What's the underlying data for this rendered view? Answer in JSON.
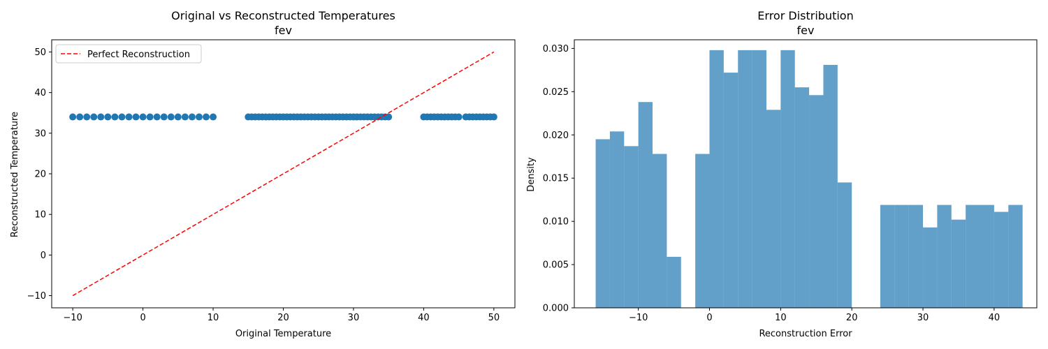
{
  "chart_data": [
    {
      "type": "scatter",
      "title": "Original vs Reconstructed Temperatures",
      "subtitle": "fev",
      "xlabel": "Original Temperature",
      "ylabel": "Reconstructed Temperature",
      "xlim": [
        -13,
        53
      ],
      "ylim": [
        -13,
        53
      ],
      "xticks": [
        -10,
        0,
        10,
        20,
        30,
        40,
        50
      ],
      "yticks": [
        -10,
        0,
        10,
        20,
        30,
        40,
        50
      ],
      "grid": false,
      "legend_position": "top-left",
      "legend": [
        "Perfect Reconstruction"
      ],
      "point_color": "#1f77b4",
      "line_color": "#ff0000",
      "series": [
        {
          "name": "",
          "kind": "points",
          "y_constant": 34,
          "x": [
            -10,
            -9,
            -8,
            -7,
            -6,
            -5,
            -4,
            -3,
            -2,
            -1,
            0,
            1,
            2,
            3,
            4,
            5,
            6,
            7,
            8,
            9,
            10,
            15,
            15.5,
            16,
            16.5,
            17,
            17.5,
            18,
            18.5,
            19,
            19.5,
            20,
            20.5,
            21,
            21.5,
            22,
            22.5,
            23,
            23.5,
            24,
            24.5,
            25,
            25.5,
            26,
            26.5,
            27,
            27.5,
            28,
            28.5,
            29,
            29.5,
            30,
            30.5,
            31,
            31.5,
            32,
            32.5,
            33,
            33.5,
            34,
            34.5,
            35,
            40,
            40.5,
            41,
            41.5,
            42,
            42.5,
            43,
            43.5,
            44,
            44.5,
            45,
            46,
            46.5,
            47,
            47.5,
            48,
            48.5,
            49,
            49.5,
            50
          ]
        },
        {
          "name": "Perfect Reconstruction",
          "kind": "dashed-line",
          "x": [
            -10,
            50
          ],
          "y": [
            -10,
            50
          ]
        }
      ]
    },
    {
      "type": "bar",
      "title": "Error Distribution",
      "subtitle": "fev",
      "xlabel": "Reconstruction Error",
      "ylabel": "Density",
      "xlim": [
        -19,
        46
      ],
      "ylim": [
        0,
        0.031
      ],
      "xticks": [
        -10,
        0,
        10,
        20,
        30,
        40
      ],
      "yticks": [
        "0.000",
        "0.005",
        "0.010",
        "0.015",
        "0.020",
        "0.025",
        "0.030"
      ],
      "grid": false,
      "bar_color": "#1f77b4",
      "bar_opacity": 0.7,
      "bins": [
        {
          "x0": -16.0,
          "x1": -14.0,
          "value": 0.0195
        },
        {
          "x0": -14.0,
          "x1": -12.0,
          "value": 0.0204
        },
        {
          "x0": -12.0,
          "x1": -10.0,
          "value": 0.0187
        },
        {
          "x0": -10.0,
          "x1": -8.0,
          "value": 0.0238
        },
        {
          "x0": -8.0,
          "x1": -6.0,
          "value": 0.0178
        },
        {
          "x0": -6.0,
          "x1": -4.0,
          "value": 0.0059
        },
        {
          "x0": -4.0,
          "x1": -2.0,
          "value": 0.0
        },
        {
          "x0": -2.0,
          "x1": 0.0,
          "value": 0.0178
        },
        {
          "x0": 0.0,
          "x1": 2.0,
          "value": 0.0298
        },
        {
          "x0": 2.0,
          "x1": 4.0,
          "value": 0.0272
        },
        {
          "x0": 4.0,
          "x1": 6.0,
          "value": 0.0298
        },
        {
          "x0": 6.0,
          "x1": 8.0,
          "value": 0.0298
        },
        {
          "x0": 8.0,
          "x1": 10.0,
          "value": 0.0229
        },
        {
          "x0": 10.0,
          "x1": 12.0,
          "value": 0.0298
        },
        {
          "x0": 12.0,
          "x1": 14.0,
          "value": 0.0255
        },
        {
          "x0": 14.0,
          "x1": 16.0,
          "value": 0.0246
        },
        {
          "x0": 16.0,
          "x1": 18.0,
          "value": 0.0281
        },
        {
          "x0": 18.0,
          "x1": 20.0,
          "value": 0.0145
        },
        {
          "x0": 20.0,
          "x1": 22.0,
          "value": 0.0
        },
        {
          "x0": 22.0,
          "x1": 24.0,
          "value": 0.0
        },
        {
          "x0": 24.0,
          "x1": 26.0,
          "value": 0.0119
        },
        {
          "x0": 26.0,
          "x1": 28.0,
          "value": 0.0119
        },
        {
          "x0": 28.0,
          "x1": 30.0,
          "value": 0.0119
        },
        {
          "x0": 30.0,
          "x1": 32.0,
          "value": 0.0093
        },
        {
          "x0": 32.0,
          "x1": 34.0,
          "value": 0.0119
        },
        {
          "x0": 34.0,
          "x1": 36.0,
          "value": 0.0102
        },
        {
          "x0": 36.0,
          "x1": 38.0,
          "value": 0.0119
        },
        {
          "x0": 38.0,
          "x1": 40.0,
          "value": 0.0119
        },
        {
          "x0": 40.0,
          "x1": 42.0,
          "value": 0.0111
        },
        {
          "x0": 42.0,
          "x1": 44.0,
          "value": 0.0119
        }
      ]
    }
  ]
}
